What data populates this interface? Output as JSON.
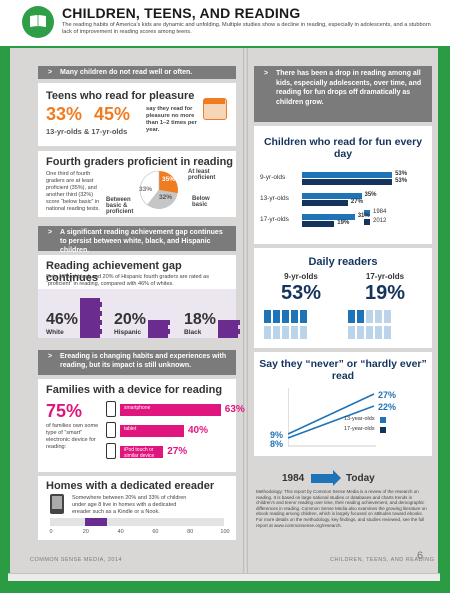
{
  "header": {
    "title": "CHILDREN, TEENS, AND READING",
    "subtitle": "The reading habits of America’s kids are dynamic and unfolding. Multiple studies show a decline in reading, especially in adolescents, and a stubborn lack of improvement in reading scores among teens."
  },
  "left": {
    "band1": "Many children do not read well or often.",
    "teens": {
      "title": "Teens who read for pleasure",
      "v1": "33%",
      "v2": "45%",
      "desc": "say they read for pleasure no more than 1–2 times per year.",
      "label": "13-yr-olds & 17-yr-olds"
    },
    "fourth": {
      "title": "Fourth graders proficient in reading",
      "desc": "One third of fourth graders are at least proficient (35%), and another third (32%) score “below basic” in national reading tests.",
      "pie_at_least": "35%",
      "pie_below": "32%",
      "pie_between": "33%",
      "lbl_at_least": "At least proficient",
      "lbl_below": "Below basic",
      "lbl_between": "Between basic & proficient"
    },
    "band2": "A significant reading achievement gap continues to persist between white, black, and Hispanic children.",
    "gap": {
      "title": "Reading achievement gap continues",
      "desc": "Only 18% of black and 20% of Hispanic fourth graders are rated as “proficient” in reading, compared with 46% of whites.",
      "groups": [
        {
          "value": "46%",
          "label": "White",
          "pct": 46
        },
        {
          "value": "20%",
          "label": "Hispanic",
          "pct": 20
        },
        {
          "value": "18%",
          "label": "Black",
          "pct": 18
        }
      ]
    },
    "band3": "Ereading is changing habits and experiences with reading, but its impact is still unknown.",
    "devices": {
      "title": "Families with a device for reading",
      "big": "75%",
      "desc": "of families own some type of “smart” electronic device for reading:",
      "rows": [
        {
          "label": "smartphone",
          "value": "63%",
          "pct": 63
        },
        {
          "label": "tablet",
          "value": "40%",
          "pct": 40
        },
        {
          "label": "iPod touch or similar device",
          "value": "27%",
          "pct": 27
        }
      ]
    },
    "ereader": {
      "title": "Homes with a dedicated ereader",
      "desc": "Somewhere between 20% and 33% of children under age 8 live in homes with a dedicated ereader such as a Kindle or a Nook.",
      "ticks": [
        "0",
        "20",
        "40",
        "60",
        "80",
        "100"
      ],
      "range": [
        20,
        33
      ]
    }
  },
  "right": {
    "band": "There has been a drop in reading among all kids, especially adolescents, over time, and reading for fun drops off dramatically as children grow.",
    "fun": {
      "title": "Children who read for fun every day",
      "rows": [
        {
          "label": "9-yr-olds",
          "v1984": "53%",
          "v2012": "53%",
          "p1984": 53,
          "p2012": 53
        },
        {
          "label": "13-yr-olds",
          "v1984": "35%",
          "v2012": "27%",
          "p1984": 35,
          "p2012": 27
        },
        {
          "label": "17-yr-olds",
          "v1984": "31%",
          "v2012": "19%",
          "p1984": 31,
          "p2012": 19
        }
      ],
      "legend": [
        "1984",
        "2012"
      ]
    },
    "daily": {
      "title": "Daily readers",
      "lbl_a": "9-yr-olds",
      "lbl_b": "17-yr-olds",
      "val_a": "53%",
      "val_b": "19%"
    },
    "never": {
      "title": "Say they “never” or “hardly ever” read",
      "v17_2012": "27%",
      "v13_2012": "22%",
      "v17_1984": "9%",
      "v13_1984": "8%",
      "legend": [
        "13-year-olds",
        "17-year-olds"
      ],
      "year_from": "1984",
      "year_to": "Today"
    },
    "method": "Methodology: This report by Common Sense Media is a review of the research on reading. It is based on large national studies or databases and charts trends in children’s and teens’ reading over time, their reading achievement, and demographic differences in reading. Common Sense Media also examines the growing literature on ebook reading among children, which is largely focused on attitudes toward ebooks. For more details on the methodology, key findings, and studies reviewed, see the full report at www.commonsense.org/research."
  },
  "footer": {
    "left": "COMMON SENSE MEDIA, 2014",
    "right": "CHILDREN, TEENS, AND READING",
    "page": "6"
  },
  "colors": {
    "green": "#2a9c44",
    "orange": "#f07c22",
    "purple": "#6a2c8e",
    "pink": "#e0157d",
    "blue": "#1f73b7",
    "navy": "#14345e",
    "gray_band": "#7b7b7b"
  }
}
